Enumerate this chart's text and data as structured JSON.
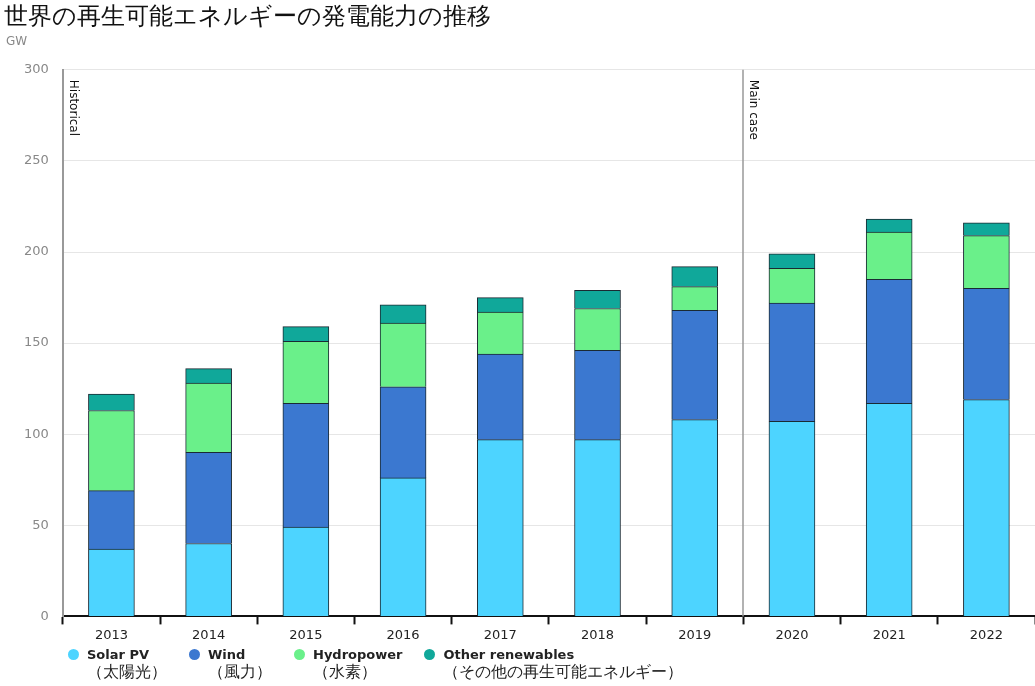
{
  "chart_data": {
    "type": "bar",
    "title": "世界の再生可能エネルギーの発電能力の推移",
    "ylabel": "GW",
    "x": [
      2013,
      2014,
      2015,
      2016,
      2017,
      2018,
      2019,
      2020,
      2021,
      2022
    ],
    "xlim": [
      2012.5,
      2022.5
    ],
    "xticks": [
      2013,
      2014,
      2015,
      2016,
      2017,
      2018,
      2019,
      2020,
      2021,
      2022
    ],
    "stacked": true,
    "series": [
      {
        "name": "Solar PV\n（太陽光）",
        "color": "#4dd4ff",
        "values": [
          37,
          40,
          49,
          76,
          97,
          97,
          108,
          107,
          117,
          119
        ]
      },
      {
        "name": "Wind\n（風力）",
        "color": "#3b78d0",
        "values": [
          32,
          50,
          68,
          50,
          47,
          49,
          60,
          65,
          68,
          61
        ]
      },
      {
        "name": "Hydropower\n（水素）",
        "color": "#6af08a",
        "values": [
          44,
          38,
          34,
          35,
          23,
          23,
          13,
          19,
          26,
          29
        ]
      },
      {
        "name": "Other renewables\n（その他の再生可能エネルギー）",
        "color": "#10a89a",
        "values": [
          9,
          8,
          8,
          10,
          8,
          10,
          11,
          8,
          7,
          7
        ]
      }
    ],
    "ylim": [
      0,
      300
    ],
    "yticks": [
      0,
      50,
      100,
      150,
      200,
      250,
      300
    ],
    "grid": "y",
    "legend": "bottom left",
    "annotations": [
      "Historical"
    ],
    "ref_lines": [
      {
        "axis": "x",
        "value": 2019.5,
        "label": "Main case",
        "color": "#999999"
      }
    ]
  }
}
